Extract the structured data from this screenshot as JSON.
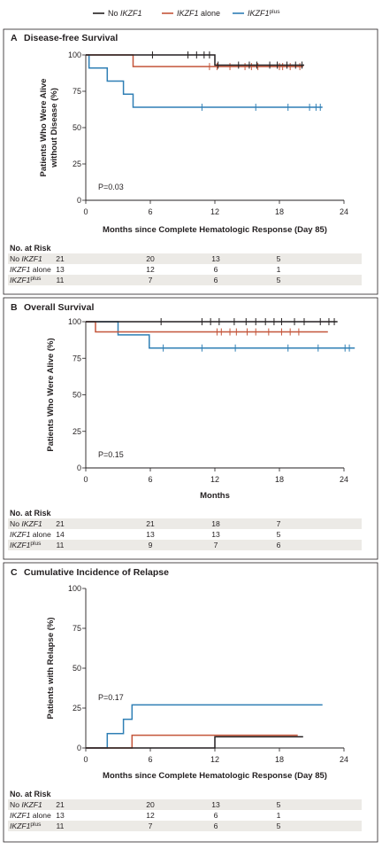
{
  "legend": [
    {
      "pre": "No ",
      "ital": "IKZF1",
      "post": "",
      "sup": "",
      "color": "#231f20"
    },
    {
      "pre": "",
      "ital": "IKZF1",
      "post": " alone",
      "sup": "",
      "color": "#c4553a"
    },
    {
      "pre": "",
      "ital": "IKZF1",
      "post": "",
      "sup": "plus",
      "color": "#2f7fb5"
    }
  ],
  "chart_data": [
    {
      "type": "line",
      "panel": "A",
      "title": "Disease-free Survival",
      "xlabel": "Months since Complete Hematologic Response (Day 85)",
      "ylabel": [
        "Patients Who Were Alive",
        "without Disease (%)"
      ],
      "xlim": [
        0,
        24
      ],
      "ylim": [
        0,
        100
      ],
      "xticks": [
        0,
        6,
        12,
        18,
        24
      ],
      "yticks": [
        0,
        25,
        50,
        75,
        100
      ],
      "pvalue": "P=0.03",
      "risk_header": "No. at Risk",
      "risk_x": [
        0,
        6,
        12,
        18
      ],
      "risk_rows": [
        {
          "pre": "No ",
          "ital": "IKZF1",
          "post": "",
          "sup": "",
          "values": [
            "21",
            "20",
            "13",
            "5"
          ]
        },
        {
          "pre": "",
          "ital": "IKZF1",
          "post": " alone",
          "sup": "",
          "values": [
            "13",
            "12",
            "6",
            "1"
          ]
        },
        {
          "pre": "",
          "ital": "IKZF1",
          "post": "",
          "sup": "plus",
          "values": [
            "11",
            "7",
            "6",
            "5"
          ]
        }
      ],
      "series": [
        {
          "color": "#231f20",
          "steps": [
            [
              0,
              100
            ],
            [
              12,
              100
            ],
            [
              12,
              93
            ],
            [
              20.3,
              93
            ]
          ],
          "censors": [
            6.2,
            9.5,
            10.3,
            11.0,
            11.5,
            12.3,
            14.2,
            15.2,
            15.9,
            17.1,
            17.8,
            18.7,
            19.5,
            20.1
          ]
        },
        {
          "color": "#c4553a",
          "steps": [
            [
              0,
              100
            ],
            [
              4.4,
              100
            ],
            [
              4.4,
              92
            ],
            [
              20.2,
              92
            ]
          ],
          "censors": [
            11.5,
            12.2,
            13.4,
            14.8,
            15.4,
            16.0,
            18.0,
            18.3,
            19.0,
            19.9
          ]
        },
        {
          "color": "#2f7fb5",
          "steps": [
            [
              0,
              100
            ],
            [
              0.3,
              100
            ],
            [
              0.3,
              91
            ],
            [
              2.0,
              91
            ],
            [
              2.0,
              82
            ],
            [
              3.5,
              82
            ],
            [
              3.5,
              73
            ],
            [
              4.4,
              73
            ],
            [
              4.4,
              64
            ],
            [
              22.0,
              64
            ]
          ],
          "censors": [
            10.8,
            15.8,
            18.8,
            20.8,
            21.4,
            21.8
          ]
        }
      ]
    },
    {
      "type": "line",
      "panel": "B",
      "title": "Overall Survival",
      "xlabel": "Months",
      "ylabel": [
        "Patients Who Were Alive (%)"
      ],
      "xlim": [
        0,
        24
      ],
      "ylim": [
        0,
        100
      ],
      "xticks": [
        0,
        6,
        12,
        18,
        24
      ],
      "yticks": [
        0,
        25,
        50,
        75,
        100
      ],
      "pvalue": "P=0.15",
      "risk_header": "No. at Risk",
      "risk_x": [
        0,
        6,
        12,
        18
      ],
      "risk_rows": [
        {
          "pre": "No ",
          "ital": "IKZF1",
          "post": "",
          "sup": "",
          "values": [
            "21",
            "21",
            "18",
            "7"
          ]
        },
        {
          "pre": "",
          "ital": "IKZF1",
          "post": " alone",
          "sup": "",
          "values": [
            "14",
            "13",
            "13",
            "5"
          ]
        },
        {
          "pre": "",
          "ital": "IKZF1",
          "post": "",
          "sup": "plus",
          "values": [
            "11",
            "9",
            "7",
            "6"
          ]
        }
      ],
      "series": [
        {
          "color": "#231f20",
          "steps": [
            [
              0,
              100
            ],
            [
              23.4,
              100
            ]
          ],
          "censors": [
            7.0,
            10.8,
            11.6,
            12.4,
            13.8,
            14.9,
            15.8,
            16.7,
            17.5,
            18.2,
            19.4,
            20.3,
            21.8,
            22.6,
            23.1
          ]
        },
        {
          "color": "#c4553a",
          "steps": [
            [
              0,
              100
            ],
            [
              0.9,
              100
            ],
            [
              0.9,
              93
            ],
            [
              22.5,
              93
            ]
          ],
          "censors": [
            12.2,
            12.6,
            13.4,
            14.0,
            15.0,
            15.8,
            17.0,
            18.2,
            19.0,
            19.8
          ]
        },
        {
          "color": "#2f7fb5",
          "steps": [
            [
              0,
              100
            ],
            [
              3.0,
              100
            ],
            [
              3.0,
              91
            ],
            [
              5.9,
              91
            ],
            [
              5.9,
              82
            ],
            [
              25.0,
              82
            ]
          ],
          "censors": [
            7.2,
            10.8,
            13.9,
            18.8,
            21.6,
            24.1,
            24.5
          ]
        }
      ]
    },
    {
      "type": "line",
      "panel": "C",
      "title": "Cumulative Incidence of Relapse",
      "xlabel": "Months since Complete Hematologic Response (Day 85)",
      "ylabel": [
        "Patients with Relapse (%)"
      ],
      "xlim": [
        0,
        24
      ],
      "ylim": [
        0,
        100
      ],
      "xticks": [
        0,
        6,
        12,
        18,
        24
      ],
      "yticks": [
        0,
        25,
        50,
        75,
        100
      ],
      "pvalue": "P=0.17",
      "risk_header": "No. at Risk",
      "risk_x": [
        0,
        6,
        12,
        18
      ],
      "risk_rows": [
        {
          "pre": "No ",
          "ital": "IKZF1",
          "post": "",
          "sup": "",
          "values": [
            "21",
            "20",
            "13",
            "5"
          ]
        },
        {
          "pre": "",
          "ital": "IKZF1",
          "post": " alone",
          "sup": "",
          "values": [
            "13",
            "12",
            "6",
            "1"
          ]
        },
        {
          "pre": "",
          "ital": "IKZF1",
          "post": "",
          "sup": "plus",
          "values": [
            "11",
            "7",
            "6",
            "5"
          ]
        }
      ],
      "series": [
        {
          "color": "#231f20",
          "steps": [
            [
              0,
              0
            ],
            [
              12,
              0
            ],
            [
              12,
              7
            ],
            [
              20.2,
              7
            ]
          ],
          "censors": []
        },
        {
          "color": "#c4553a",
          "steps": [
            [
              0,
              0
            ],
            [
              4.3,
              0
            ],
            [
              4.3,
              8
            ],
            [
              19.7,
              8
            ]
          ],
          "censors": []
        },
        {
          "color": "#2f7fb5",
          "steps": [
            [
              0,
              0
            ],
            [
              2.0,
              0
            ],
            [
              2.0,
              9
            ],
            [
              3.5,
              9
            ],
            [
              3.5,
              18
            ],
            [
              4.3,
              18
            ],
            [
              4.3,
              27
            ],
            [
              22.0,
              27
            ]
          ],
          "censors": []
        }
      ]
    }
  ]
}
